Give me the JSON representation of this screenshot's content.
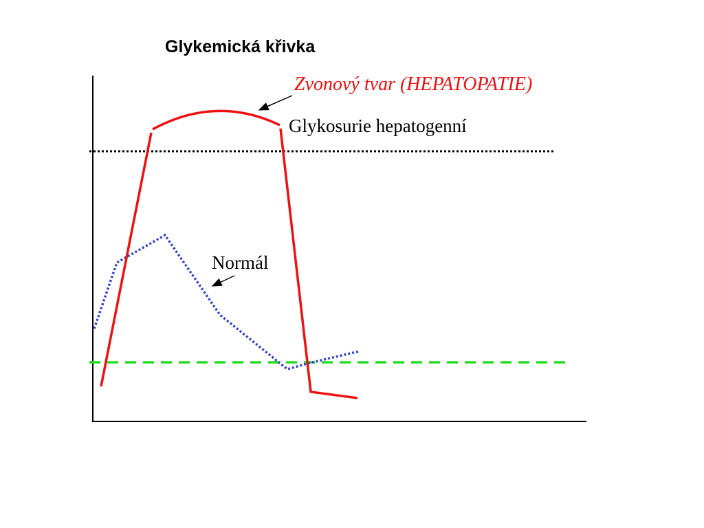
{
  "title": "Glykemická křivka",
  "labels": {
    "hepatopathy": "Zvonový tvar (HEPATOPATIE)",
    "glycosuria": "Glykosurie hepatogenní",
    "normal": "Normál"
  }
}
